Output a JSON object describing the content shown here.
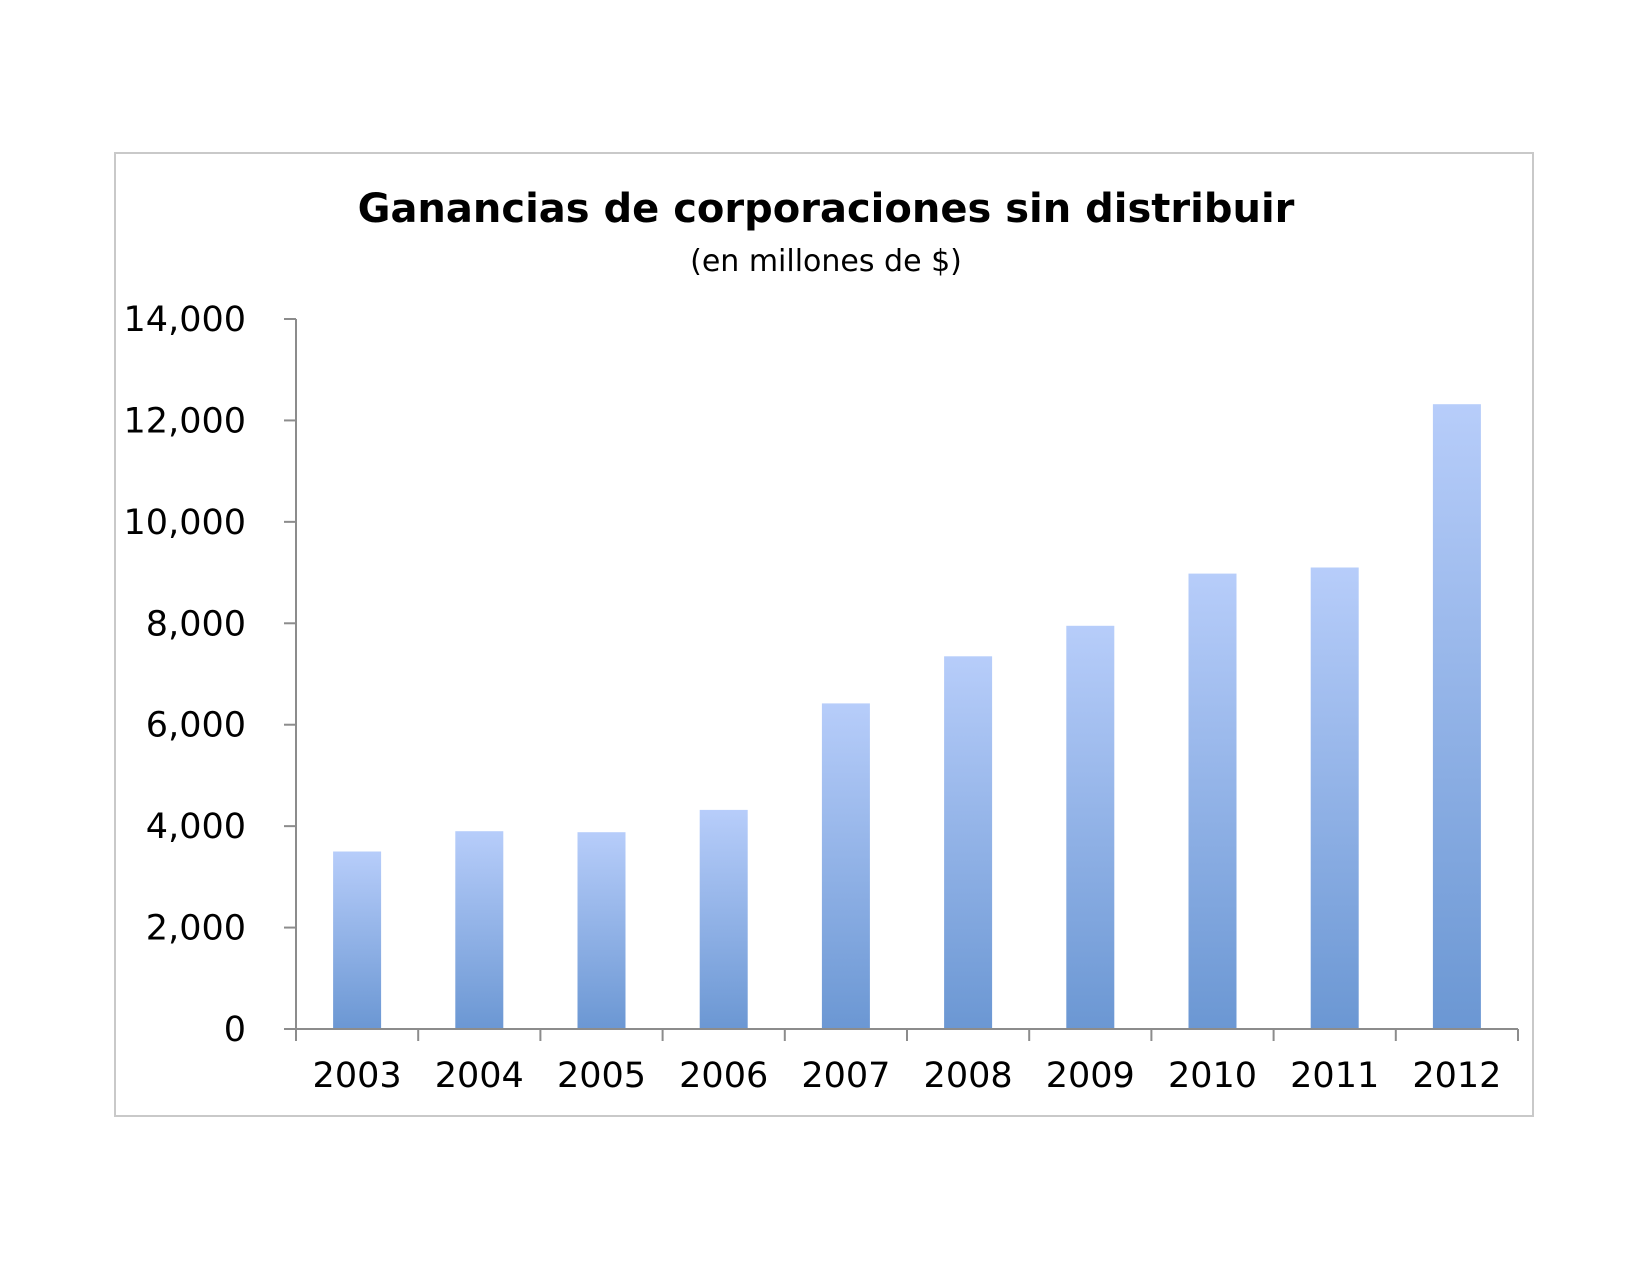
{
  "colors": {
    "bar_top": "#b7cdfa",
    "bar_bottom": "#6b97d3",
    "axis": "#8c8c8c",
    "frame": "#c9c9c9"
  },
  "chart_data": {
    "type": "bar",
    "title": "Ganancias de corporaciones sin distribuir",
    "subtitle": "(en millones de $)",
    "xlabel": "",
    "ylabel": "",
    "categories": [
      "2003",
      "2004",
      "2005",
      "2006",
      "2007",
      "2008",
      "2009",
      "2010",
      "2011",
      "2012"
    ],
    "values": [
      3500,
      3900,
      3880,
      4320,
      6420,
      7350,
      7950,
      8980,
      9100,
      12320
    ],
    "ylim": [
      0,
      14000
    ],
    "yticks": [
      0,
      2000,
      4000,
      6000,
      8000,
      10000,
      12000,
      14000
    ],
    "ytick_labels": [
      "0",
      "2,000",
      "4,000",
      "6,000",
      "8,000",
      "10,000",
      "12,000",
      "14,000"
    ],
    "grid": false,
    "legend": "none"
  }
}
